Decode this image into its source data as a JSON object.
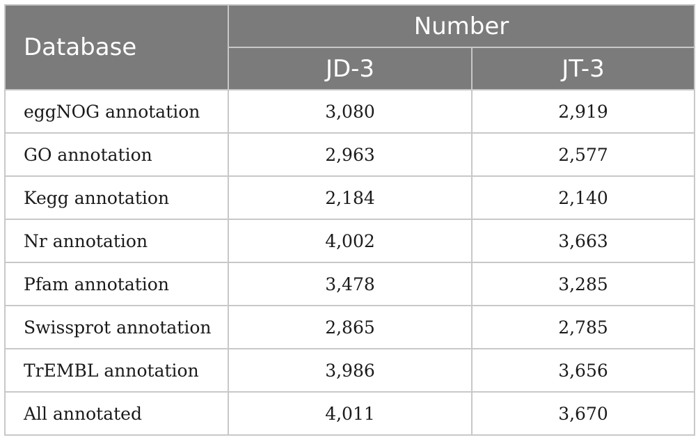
{
  "table": {
    "header": {
      "database": "Database",
      "number": "Number",
      "jd3": "JD-3",
      "jt3": "JT-3"
    },
    "rows": [
      {
        "name": "eggNOG annotation",
        "jd3": "3,080",
        "jt3": "2,919"
      },
      {
        "name": "GO annotation",
        "jd3": "2,963",
        "jt3": "2,577"
      },
      {
        "name": "Kegg annotation",
        "jd3": "2,184",
        "jt3": "2,140"
      },
      {
        "name": "Nr annotation",
        "jd3": "4,002",
        "jt3": "3,663"
      },
      {
        "name": "Pfam annotation",
        "jd3": "3,478",
        "jt3": "3,285"
      },
      {
        "name": "Swissprot annotation",
        "jd3": "2,865",
        "jt3": "2,785"
      },
      {
        "name": "TrEMBL annotation",
        "jd3": "3,986",
        "jt3": "3,656"
      },
      {
        "name": "All annotated",
        "jd3": "4,011",
        "jt3": "3,670"
      }
    ]
  },
  "colors": {
    "header_bg": "#7b7b7b",
    "header_text": "#ffffff",
    "border": "#c8c8c8",
    "body_text": "#1a1a1a"
  }
}
